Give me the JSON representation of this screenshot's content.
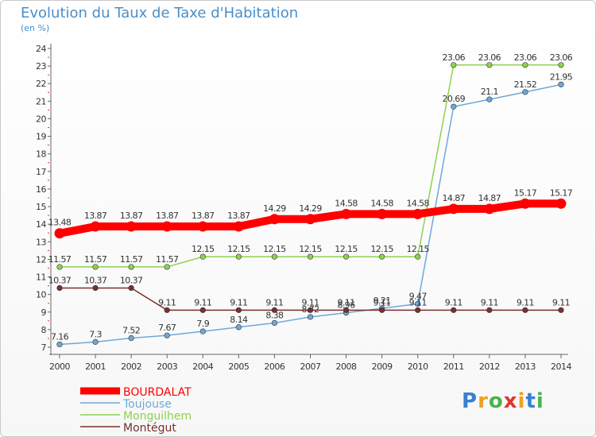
{
  "title": "Evolution du Taux de Taxe d'Habitation",
  "unit_label": "(en %)",
  "logo_text": "Proxiti",
  "chart_data": {
    "type": "line",
    "title": "Evolution du Taux de Taxe d'Habitation",
    "ylabel": "(en %)",
    "xlabel": "",
    "ylim": [
      7,
      24
    ],
    "yticks": [
      7,
      8,
      9,
      10,
      11,
      12,
      13,
      14,
      15,
      16,
      17,
      18,
      19,
      20,
      21,
      22,
      23,
      24
    ],
    "x": [
      "2000",
      "2001",
      "2002",
      "2003",
      "2004",
      "2005",
      "2006",
      "2007",
      "2008",
      "2009",
      "2010",
      "2011",
      "2012",
      "2013",
      "2014"
    ],
    "grid": false,
    "legend_position": "bottom-left",
    "series": [
      {
        "name": "BOURDALAT",
        "color": "#ff0000",
        "values": [
          13.48,
          13.87,
          13.87,
          13.87,
          13.87,
          13.87,
          14.29,
          14.29,
          14.58,
          14.58,
          14.58,
          14.87,
          14.87,
          15.17,
          15.17
        ],
        "labels": [
          "13.48",
          "13.87",
          "13.87",
          "13.87",
          "13.87",
          "13.87",
          "14.29",
          "14.29",
          "14.58",
          "14.58",
          "14.58",
          "14.87",
          "14.87",
          "15.17",
          "15.17"
        ]
      },
      {
        "name": "Toujouse",
        "color": "#6fa8d8",
        "values": [
          7.16,
          7.3,
          7.52,
          7.67,
          7.9,
          8.14,
          8.38,
          8.72,
          8.96,
          9.21,
          9.47,
          20.69,
          21.1,
          21.52,
          21.95
        ],
        "labels": [
          "7.16",
          "7.3",
          "7.52",
          "7.67",
          "7.9",
          "8.14",
          "8.38",
          "8.72",
          "8.96",
          "9.21",
          "9.47",
          "20.69",
          "21.1",
          "21.52",
          "21.95"
        ]
      },
      {
        "name": "Monguilhem",
        "color": "#8fd14f",
        "values": [
          11.57,
          11.57,
          11.57,
          11.57,
          12.15,
          12.15,
          12.15,
          12.15,
          12.15,
          12.15,
          12.15,
          23.06,
          23.06,
          23.06,
          23.06
        ],
        "labels": [
          "11.57",
          "11.57",
          "11.57",
          "11.57",
          "12.15",
          "12.15",
          "12.15",
          "12.15",
          "12.15",
          "12.15",
          "12.15",
          "23.06",
          "23.06",
          "23.06",
          "23.06"
        ]
      },
      {
        "name": "Montégut",
        "color": "#7a2f2f",
        "values": [
          10.37,
          10.37,
          10.37,
          9.11,
          9.11,
          9.11,
          9.11,
          9.11,
          9.11,
          9.11,
          9.11,
          9.11,
          9.11,
          9.11,
          9.11
        ],
        "labels": [
          "10.37",
          "10.37",
          "10.37",
          "9.11",
          "9.11",
          "9.11",
          "9.11",
          "9.11",
          "9.11",
          "9.11",
          "9.11",
          "9.11",
          "9.11",
          "9.11",
          "9.11"
        ]
      }
    ]
  }
}
